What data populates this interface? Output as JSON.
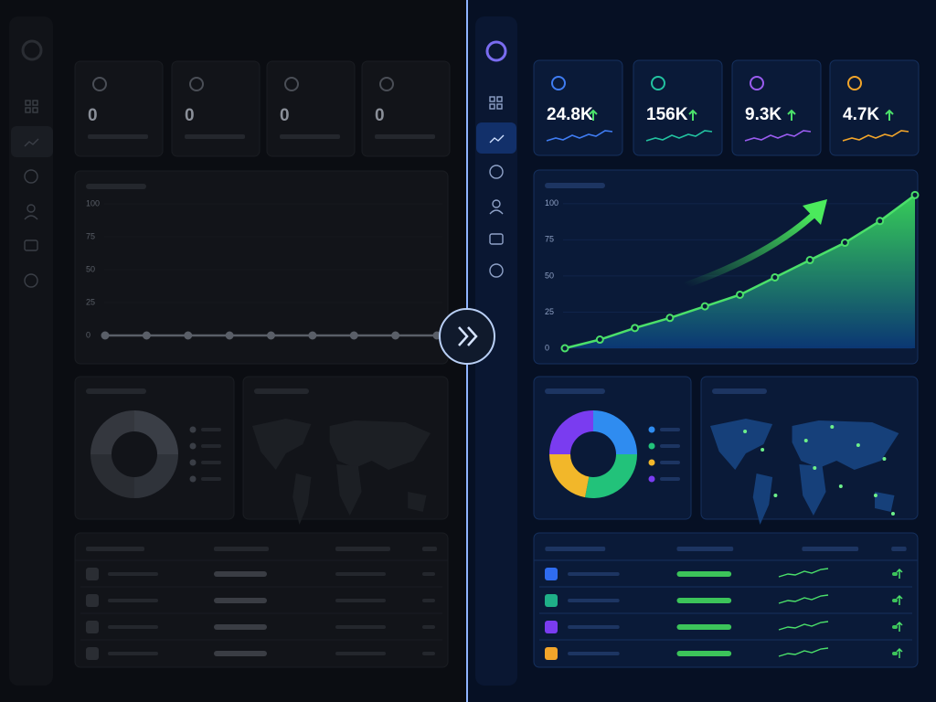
{
  "left": {
    "stats": [
      "0",
      "0",
      "0",
      "0"
    ],
    "chart": {
      "type": "line",
      "values": [
        0,
        0,
        0,
        0,
        0,
        0,
        0,
        0,
        0
      ],
      "ylim": [
        0,
        100
      ],
      "yticks": [
        0,
        25,
        50,
        75,
        100
      ],
      "color": "#5a5f68"
    },
    "donut": {
      "type": "pie",
      "values": [
        25,
        25,
        25,
        25
      ],
      "colors": [
        "#3a3e46",
        "#2f333a",
        "#2a2d33",
        "#34373e"
      ]
    }
  },
  "right": {
    "stats": [
      "24.8K",
      "156K",
      "9.3K",
      "4.7K"
    ],
    "chart": {
      "type": "line",
      "values": [
        0,
        6,
        14,
        21,
        29,
        37,
        49,
        61,
        73,
        88,
        106
      ],
      "ylim": [
        0,
        110
      ],
      "yticks": [
        0,
        25,
        50,
        75,
        100
      ],
      "color": "#4be06a"
    },
    "donut": {
      "type": "pie",
      "values": [
        25,
        28,
        22,
        25
      ],
      "colors": [
        "#2f8cf0",
        "#22c27a",
        "#f2b72a",
        "#7a3cf0"
      ]
    }
  }
}
